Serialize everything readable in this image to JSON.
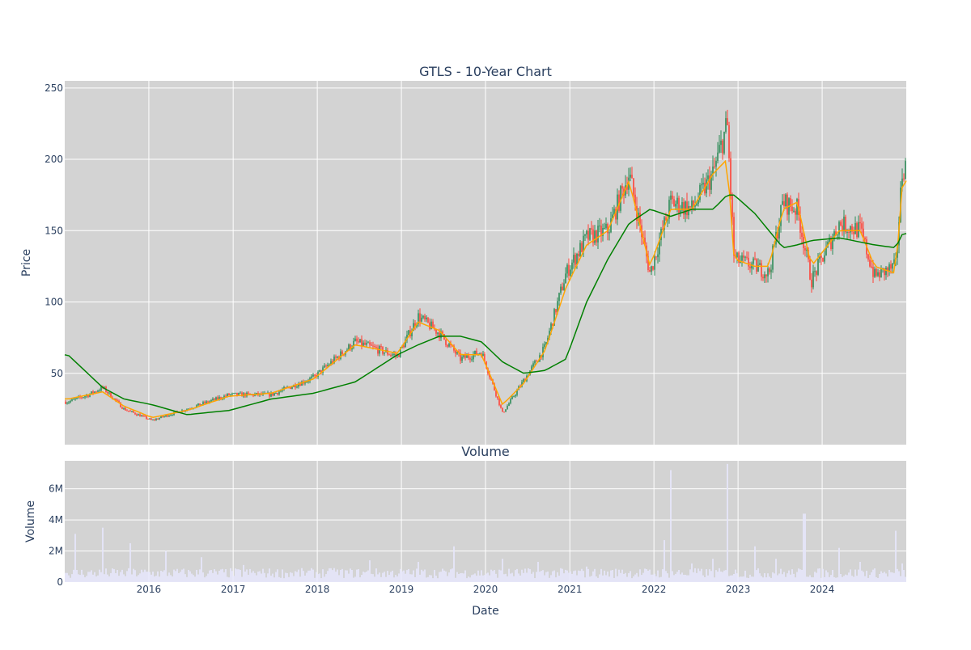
{
  "chart_data": [
    {
      "type": "candlestick",
      "title": "GTLS - 10-Year Chart",
      "ylabel": "Price",
      "xlabel": "",
      "ylim": [
        0,
        255
      ],
      "yticks": [
        50,
        100,
        150,
        200,
        250
      ],
      "xrange": [
        "2015-01-01",
        "2024-12-31"
      ],
      "grid": true,
      "colors": {
        "plot_bg": "#d3d3d3",
        "up": "#2e8b57",
        "down": "#ff4136",
        "fast_ma": "#ffa500",
        "slow_ma": "#008000"
      },
      "series": [
        {
          "name": "",
          "kind": "close_path",
          "x": [
            "2015-01",
            "2015-04",
            "2015-06",
            "2015-09",
            "2016-01",
            "2016-06",
            "2016-12",
            "2017-06",
            "2017-12",
            "2018-06",
            "2018-12",
            "2019-03",
            "2019-06",
            "2019-09",
            "2019-12",
            "2020-03",
            "2020-06",
            "2020-09",
            "2020-12",
            "2021-03",
            "2021-06",
            "2021-09",
            "2021-12",
            "2022-03",
            "2022-06",
            "2022-09",
            "2022-11",
            "2022-12",
            "2023-03",
            "2023-05",
            "2023-07",
            "2023-09",
            "2023-11",
            "2024-03",
            "2024-06",
            "2024-08",
            "2024-11",
            "2024-12"
          ],
          "y": [
            30,
            35,
            40,
            25,
            17,
            25,
            35,
            35,
            47,
            72,
            62,
            90,
            78,
            60,
            65,
            22,
            45,
            68,
            120,
            145,
            150,
            190,
            120,
            170,
            165,
            190,
            225,
            130,
            125,
            120,
            170,
            165,
            115,
            155,
            150,
            118,
            125,
            195
          ]
        },
        {
          "name": "",
          "kind": "ma_fast",
          "x": [
            "2015-01",
            "2015-06",
            "2015-09",
            "2016-01",
            "2016-06",
            "2016-12",
            "2017-06",
            "2017-12",
            "2018-06",
            "2018-12",
            "2019-03",
            "2019-06",
            "2019-09",
            "2019-12",
            "2020-03",
            "2020-06",
            "2020-09",
            "2020-12",
            "2021-03",
            "2021-06",
            "2021-09",
            "2021-12",
            "2022-03",
            "2022-06",
            "2022-09",
            "2022-11",
            "2022-12",
            "2023-03",
            "2023-05",
            "2023-07",
            "2023-09",
            "2023-11",
            "2024-03",
            "2024-06",
            "2024-08",
            "2024-11",
            "2024-12"
          ],
          "y": [
            32,
            37,
            27,
            19,
            24,
            34,
            36,
            46,
            70,
            64,
            86,
            80,
            63,
            63,
            28,
            43,
            66,
            110,
            140,
            150,
            185,
            125,
            165,
            165,
            190,
            200,
            130,
            125,
            125,
            165,
            170,
            125,
            150,
            150,
            125,
            120,
            185
          ]
        },
        {
          "name": "",
          "kind": "ma_slow",
          "x": [
            "2015-01",
            "2015-06",
            "2015-09",
            "2016-01",
            "2016-06",
            "2016-12",
            "2017-06",
            "2017-12",
            "2018-06",
            "2018-12",
            "2019-03",
            "2019-06",
            "2019-09",
            "2019-12",
            "2020-03",
            "2020-06",
            "2020-09",
            "2020-12",
            "2021-03",
            "2021-06",
            "2021-09",
            "2021-12",
            "2022-03",
            "2022-06",
            "2022-09",
            "2022-11",
            "2022-12",
            "2023-03",
            "2023-05",
            "2023-07",
            "2023-09",
            "2023-11",
            "2024-03",
            "2024-06",
            "2024-08",
            "2024-11",
            "2024-12"
          ],
          "y": [
            63,
            40,
            32,
            28,
            21,
            24,
            32,
            36,
            44,
            63,
            70,
            76,
            76,
            72,
            58,
            50,
            52,
            60,
            100,
            130,
            155,
            165,
            160,
            165,
            165,
            175,
            175,
            162,
            150,
            138,
            140,
            143,
            145,
            142,
            140,
            138,
            148
          ]
        }
      ]
    },
    {
      "type": "bar",
      "title": "Volume",
      "ylabel": "Volume",
      "xlabel": "Date",
      "ylim": [
        0,
        7800000
      ],
      "yticks": [
        0,
        2000000,
        4000000,
        6000000
      ],
      "ytick_labels": [
        "0",
        "2M",
        "4M",
        "6M"
      ],
      "xticks": [
        "2016",
        "2017",
        "2018",
        "2019",
        "2020",
        "2021",
        "2022",
        "2023",
        "2024"
      ],
      "grid": true,
      "colors": {
        "plot_bg": "#d3d3d3",
        "bar": "#e6e6fa"
      },
      "series": [
        {
          "name": "",
          "kind": "volume",
          "note_spikes": true,
          "x": [
            "2015-02",
            "2015-06",
            "2015-10",
            "2016-03",
            "2016-08",
            "2017-02",
            "2017-08",
            "2018-03",
            "2018-08",
            "2019-03",
            "2019-08",
            "2020-03",
            "2020-08",
            "2021-03",
            "2021-08",
            "2022-02",
            "2022-03",
            "2022-06",
            "2022-09",
            "2022-11",
            "2023-03",
            "2023-06",
            "2023-10",
            "2024-03",
            "2024-06",
            "2024-11",
            "2024-12"
          ],
          "y": [
            3100000,
            3500000,
            2500000,
            2000000,
            1600000,
            1100000,
            600000,
            900000,
            1400000,
            1300000,
            2300000,
            1500000,
            1300000,
            1000000,
            800000,
            2700000,
            7200000,
            1200000,
            1500000,
            7600000,
            2300000,
            1500000,
            4400000,
            2200000,
            1300000,
            3300000,
            1200000
          ]
        }
      ]
    }
  ]
}
